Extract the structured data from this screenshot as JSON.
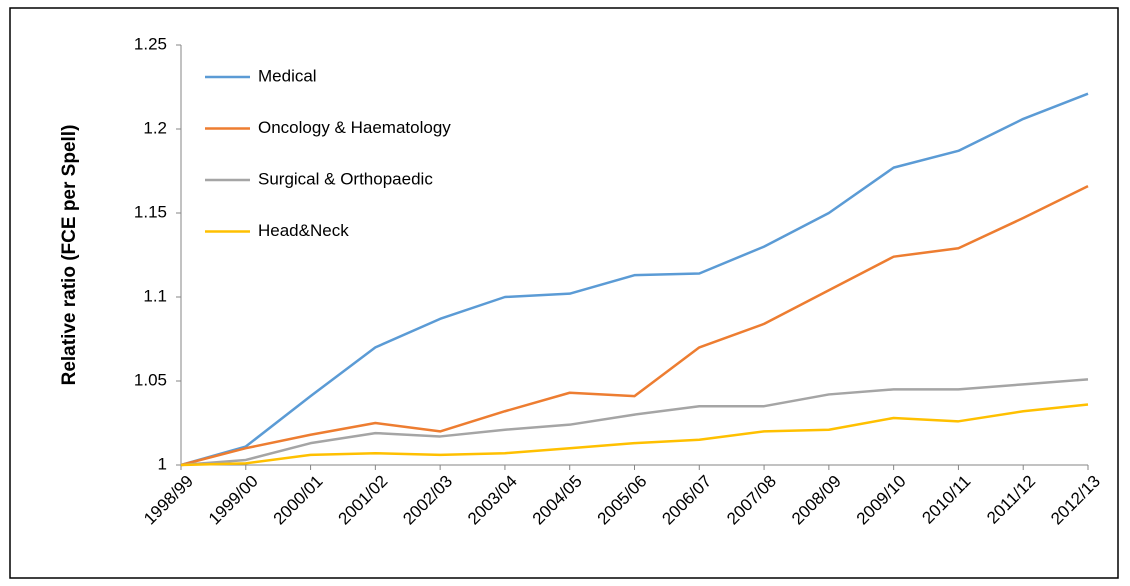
{
  "chart_data": {
    "type": "line",
    "y_label": "Relative ratio (FCE per Spell)",
    "categories": [
      "1998/99",
      "1999/00",
      "2000/01",
      "2001/02",
      "2002/03",
      "2003/04",
      "2004/05",
      "2005/06",
      "2006/07",
      "2007/08",
      "2008/09",
      "2009/10",
      "2010/11",
      "2011/12",
      "2012/13"
    ],
    "series": [
      {
        "name": "Medical",
        "color": "#5b9bd5",
        "values": [
          1.0,
          1.011,
          1.041,
          1.07,
          1.087,
          1.1,
          1.102,
          1.113,
          1.114,
          1.13,
          1.15,
          1.177,
          1.187,
          1.206,
          1.221
        ]
      },
      {
        "name": "Oncology & Haematology",
        "color": "#ed7d31",
        "values": [
          1.0,
          1.01,
          1.018,
          1.025,
          1.02,
          1.032,
          1.043,
          1.041,
          1.07,
          1.084,
          1.104,
          1.124,
          1.129,
          1.147,
          1.166
        ]
      },
      {
        "name": "Surgical & Orthopaedic",
        "color": "#a5a5a5",
        "values": [
          1.0,
          1.003,
          1.013,
          1.019,
          1.017,
          1.021,
          1.024,
          1.03,
          1.035,
          1.035,
          1.042,
          1.045,
          1.045,
          1.048,
          1.051
        ]
      },
      {
        "name": "Head&Neck",
        "color": "#ffc000",
        "values": [
          1.0,
          1.001,
          1.006,
          1.007,
          1.006,
          1.007,
          1.01,
          1.013,
          1.015,
          1.02,
          1.021,
          1.028,
          1.026,
          1.032,
          1.036
        ]
      }
    ],
    "ylim": [
      1,
      1.25
    ],
    "yticks": [
      1,
      1.05,
      1.1,
      1.15,
      1.2,
      1.25
    ],
    "grid": false,
    "legend": "upper-left"
  }
}
